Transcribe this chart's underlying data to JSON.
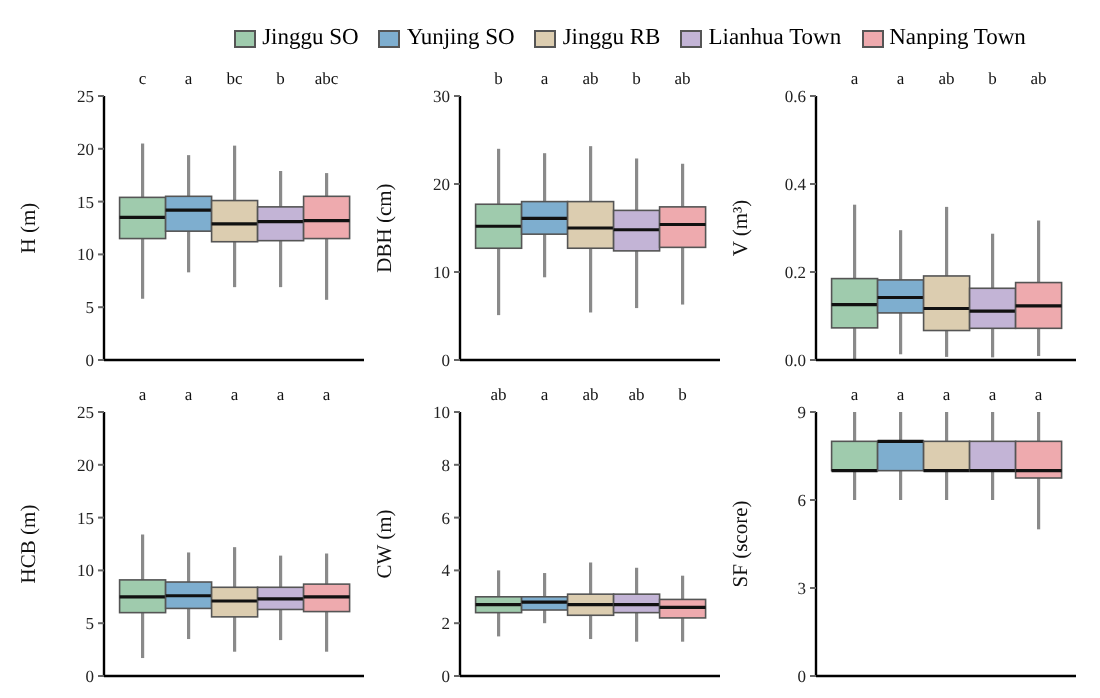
{
  "chart_data": [
    {
      "type": "box",
      "ylabel": "H (m)",
      "legend": "top",
      "tick_labels": "y",
      "categories": [
        null
      ],
      "ylim": [
        0,
        25
      ],
      "yticks": [
        0,
        5,
        10,
        15,
        20,
        25
      ],
      "series": [
        {
          "name": "Jinggu SO",
          "color": "#9fcbad",
          "boxes": [
            {
              "low": 5.8,
              "q1": 11.5,
              "median": 13.5,
              "q3": 15.4,
              "high": 20.5
            }
          ]
        },
        {
          "name": "Yunjing SO",
          "color": "#7eaecf",
          "boxes": [
            {
              "low": 8.3,
              "q1": 12.2,
              "median": 14.2,
              "q3": 15.5,
              "high": 19.4
            }
          ]
        },
        {
          "name": "Jinggu RB",
          "color": "#dccdb0",
          "boxes": [
            {
              "low": 6.9,
              "q1": 11.2,
              "median": 12.9,
              "q3": 15.1,
              "high": 20.3
            }
          ]
        },
        {
          "name": "Lianhua Town",
          "color": "#c3b4d6",
          "boxes": [
            {
              "low": 6.9,
              "q1": 11.3,
              "median": 13.1,
              "q3": 14.5,
              "high": 17.9
            }
          ]
        },
        {
          "name": "Nanping Town",
          "color": "#eeaaae",
          "boxes": [
            {
              "low": 5.7,
              "q1": 11.5,
              "median": 13.2,
              "q3": 15.5,
              "high": 17.7
            }
          ]
        }
      ],
      "annotations": [
        "c",
        "a",
        "bc",
        "b",
        "abc"
      ]
    },
    {
      "type": "box",
      "ylabel": "DBH (cm)",
      "tick_labels": "y",
      "categories": [
        null
      ],
      "ylim": [
        0,
        30
      ],
      "yticks": [
        0,
        10,
        20,
        30
      ],
      "series": [
        {
          "color": "#9fcbad",
          "boxes": [
            {
              "low": 5.1,
              "q1": 12.7,
              "median": 15.2,
              "q3": 17.7,
              "high": 24.0
            }
          ]
        },
        {
          "color": "#7eaecf",
          "boxes": [
            {
              "low": 9.4,
              "q1": 14.3,
              "median": 16.1,
              "q3": 18.0,
              "high": 23.5
            }
          ]
        },
        {
          "color": "#dccdb0",
          "boxes": [
            {
              "low": 5.4,
              "q1": 12.7,
              "median": 15.0,
              "q3": 18.0,
              "high": 24.3
            }
          ]
        },
        {
          "color": "#c3b4d6",
          "boxes": [
            {
              "low": 5.9,
              "q1": 12.4,
              "median": 14.8,
              "q3": 17.0,
              "high": 22.9
            }
          ]
        },
        {
          "color": "#eeaaae",
          "boxes": [
            {
              "low": 6.3,
              "q1": 12.8,
              "median": 15.4,
              "q3": 17.4,
              "high": 22.3
            }
          ]
        }
      ],
      "annotations": [
        "b",
        "a",
        "ab",
        "b",
        "ab"
      ]
    },
    {
      "type": "box",
      "ylabel": "V (m³)",
      "tick_labels": "y",
      "categories": [
        null
      ],
      "ylim": [
        0,
        0.6
      ],
      "yticks": [
        {
          "value": 0,
          "label": "0.0"
        },
        {
          "value": 0.2,
          "label": "0.2"
        },
        {
          "value": 0.4,
          "label": "0.4"
        },
        {
          "value": 0.6,
          "label": "0.6"
        }
      ],
      "series": [
        {
          "color": "#9fcbad",
          "boxes": [
            {
              "low": 0.0,
              "q1": 0.073,
              "median": 0.126,
              "q3": 0.185,
              "high": 0.353
            }
          ]
        },
        {
          "color": "#7eaecf",
          "boxes": [
            {
              "low": 0.013,
              "q1": 0.107,
              "median": 0.142,
              "q3": 0.182,
              "high": 0.295
            }
          ]
        },
        {
          "color": "#dccdb0",
          "boxes": [
            {
              "low": 0.007,
              "q1": 0.067,
              "median": 0.117,
              "q3": 0.191,
              "high": 0.348
            }
          ]
        },
        {
          "color": "#c3b4d6",
          "boxes": [
            {
              "low": 0.006,
              "q1": 0.072,
              "median": 0.111,
              "q3": 0.163,
              "high": 0.287
            }
          ]
        },
        {
          "color": "#eeaaae",
          "boxes": [
            {
              "low": 0.009,
              "q1": 0.072,
              "median": 0.123,
              "q3": 0.176,
              "high": 0.317
            }
          ]
        }
      ],
      "annotations": [
        "a",
        "a",
        "ab",
        "b",
        "ab"
      ]
    },
    {
      "type": "box",
      "ylabel": "HCB (m)",
      "tick_labels": "y",
      "categories": [
        null
      ],
      "ylim": [
        0,
        25
      ],
      "yticks": [
        0,
        5,
        10,
        15,
        20,
        25
      ],
      "series": [
        {
          "color": "#9fcbad",
          "boxes": [
            {
              "low": 1.7,
              "q1": 6.0,
              "median": 7.5,
              "q3": 9.1,
              "high": 13.4
            }
          ]
        },
        {
          "color": "#7eaecf",
          "boxes": [
            {
              "low": 3.5,
              "q1": 6.4,
              "median": 7.6,
              "q3": 8.9,
              "high": 11.7
            }
          ]
        },
        {
          "color": "#dccdb0",
          "boxes": [
            {
              "low": 2.3,
              "q1": 5.6,
              "median": 7.1,
              "q3": 8.4,
              "high": 12.2
            }
          ]
        },
        {
          "color": "#c3b4d6",
          "boxes": [
            {
              "low": 3.4,
              "q1": 6.3,
              "median": 7.3,
              "q3": 8.4,
              "high": 11.4
            }
          ]
        },
        {
          "color": "#eeaaae",
          "boxes": [
            {
              "low": 2.3,
              "q1": 6.1,
              "median": 7.5,
              "q3": 8.7,
              "high": 11.6
            }
          ]
        }
      ],
      "annotations": [
        "a",
        "a",
        "a",
        "a",
        "a"
      ]
    },
    {
      "type": "box",
      "ylabel": "CW (m)",
      "tick_labels": "y",
      "categories": [
        null
      ],
      "ylim": [
        0,
        10
      ],
      "yticks": [
        0,
        2,
        4,
        6,
        8,
        10
      ],
      "series": [
        {
          "color": "#9fcbad",
          "boxes": [
            {
              "low": 1.5,
              "q1": 2.4,
              "median": 2.7,
              "q3": 3.0,
              "high": 4.0
            }
          ]
        },
        {
          "color": "#7eaecf",
          "boxes": [
            {
              "low": 2.0,
              "q1": 2.5,
              "median": 2.8,
              "q3": 3.0,
              "high": 3.9
            }
          ]
        },
        {
          "color": "#dccdb0",
          "boxes": [
            {
              "low": 1.4,
              "q1": 2.3,
              "median": 2.7,
              "q3": 3.1,
              "high": 4.3
            }
          ]
        },
        {
          "color": "#c3b4d6",
          "boxes": [
            {
              "low": 1.3,
              "q1": 2.4,
              "median": 2.7,
              "q3": 3.1,
              "high": 4.1
            }
          ]
        },
        {
          "color": "#eeaaae",
          "boxes": [
            {
              "low": 1.3,
              "q1": 2.2,
              "median": 2.6,
              "q3": 2.9,
              "high": 3.8
            }
          ]
        }
      ],
      "annotations": [
        "ab",
        "a",
        "ab",
        "ab",
        "b"
      ]
    },
    {
      "type": "box",
      "ylabel": "SF (score)",
      "tick_labels": "y",
      "categories": [
        null
      ],
      "ylim": [
        0,
        9
      ],
      "yticks": [
        0,
        3,
        6,
        9
      ],
      "series": [
        {
          "color": "#9fcbad",
          "boxes": [
            {
              "low": 6,
              "q1": 7,
              "median": 7,
              "q3": 8,
              "high": 9
            }
          ]
        },
        {
          "color": "#7eaecf",
          "boxes": [
            {
              "low": 6,
              "q1": 7,
              "median": 8,
              "q3": 8,
              "high": 9
            }
          ]
        },
        {
          "color": "#dccdb0",
          "boxes": [
            {
              "low": 6,
              "q1": 7,
              "median": 7,
              "q3": 8,
              "high": 9
            }
          ]
        },
        {
          "color": "#c3b4d6",
          "boxes": [
            {
              "low": 6,
              "q1": 7,
              "median": 7,
              "q3": 8,
              "high": 9
            }
          ]
        },
        {
          "color": "#eeaaae",
          "boxes": [
            {
              "low": 5,
              "q1": 6.75,
              "median": 7,
              "q3": 8,
              "high": 9
            }
          ]
        }
      ],
      "annotations": [
        "a",
        "a",
        "a",
        "a",
        "a"
      ]
    }
  ]
}
